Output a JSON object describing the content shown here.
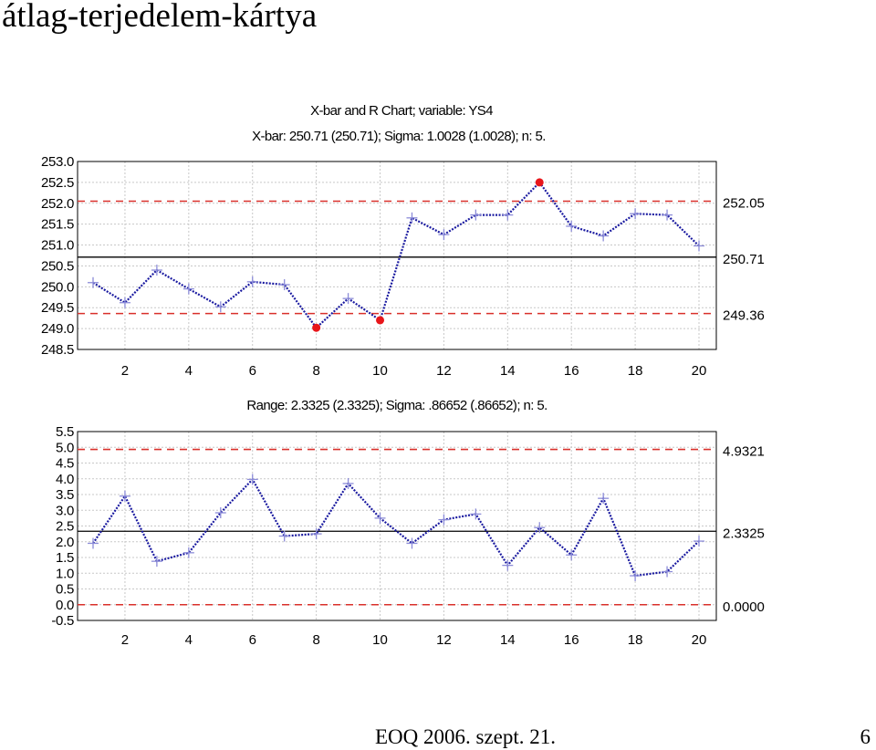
{
  "slide": {
    "title": "átlag-terjedelem-kártya",
    "footer": "EOQ 2006. szept. 21.",
    "page_number": "6"
  },
  "chart_data": [
    {
      "type": "line",
      "title": "X-bar and R Chart; variable:  YS4",
      "subtitle": "X-bar: 250.71 (250.71); Sigma: 1.0028 (1.0028); n: 5.",
      "x": [
        1,
        2,
        3,
        4,
        5,
        6,
        7,
        8,
        9,
        10,
        11,
        12,
        13,
        14,
        15,
        16,
        17,
        18,
        19,
        20
      ],
      "values": [
        250.1,
        249.62,
        250.4,
        249.95,
        249.52,
        250.12,
        250.05,
        249.02,
        249.72,
        249.2,
        251.65,
        251.25,
        251.72,
        251.72,
        252.5,
        251.45,
        251.22,
        251.75,
        251.72,
        250.98
      ],
      "out_of_control_x": [
        8,
        10,
        15
      ],
      "center_line": 250.71,
      "ucl": 252.05,
      "lcl": 249.36,
      "control_labels": [
        "252.05",
        "250.71",
        "249.36"
      ],
      "xticks": [
        2,
        4,
        6,
        8,
        10,
        12,
        14,
        16,
        18,
        20
      ],
      "xlim": [
        1,
        20
      ],
      "yticks": [
        "253.0",
        "252.5",
        "252.0",
        "251.5",
        "251.0",
        "250.5",
        "250.0",
        "249.5",
        "249.0",
        "248.5"
      ],
      "ylim": [
        248.5,
        253.0
      ],
      "grid": true,
      "colors": {
        "series": "#1a1aa0",
        "marker": "#8c8cd8",
        "out_of_control": "#e8151a",
        "limits": "#d9302b",
        "center": "#000000"
      }
    },
    {
      "type": "line",
      "title": "Range: 2.3325 (2.3325); Sigma: .86652 (.86652); n: 5.",
      "x": [
        1,
        2,
        3,
        4,
        5,
        6,
        7,
        8,
        9,
        10,
        11,
        12,
        13,
        14,
        15,
        16,
        17,
        18,
        19,
        20
      ],
      "values": [
        1.95,
        3.45,
        1.38,
        1.65,
        2.92,
        3.98,
        2.18,
        2.25,
        3.85,
        2.75,
        1.95,
        2.7,
        2.88,
        1.25,
        2.45,
        1.58,
        3.38,
        0.92,
        1.05,
        2.02
      ],
      "center_line": 2.3325,
      "ucl": 4.9321,
      "lcl": 0.0,
      "control_labels": [
        "4.9321",
        "2.3325",
        "0.0000"
      ],
      "xticks": [
        2,
        4,
        6,
        8,
        10,
        12,
        14,
        16,
        18,
        20
      ],
      "xlim": [
        1,
        20
      ],
      "yticks": [
        "5.5",
        "5.0",
        "4.5",
        "4.0",
        "3.5",
        "3.0",
        "2.5",
        "2.0",
        "1.5",
        "1.0",
        "0.5",
        "0.0",
        "-0.5"
      ],
      "ylim": [
        -0.5,
        5.5
      ],
      "grid": true,
      "colors": {
        "series": "#1a1aa0",
        "marker": "#8c8cd8",
        "limits": "#d9302b",
        "center": "#000000"
      }
    }
  ]
}
